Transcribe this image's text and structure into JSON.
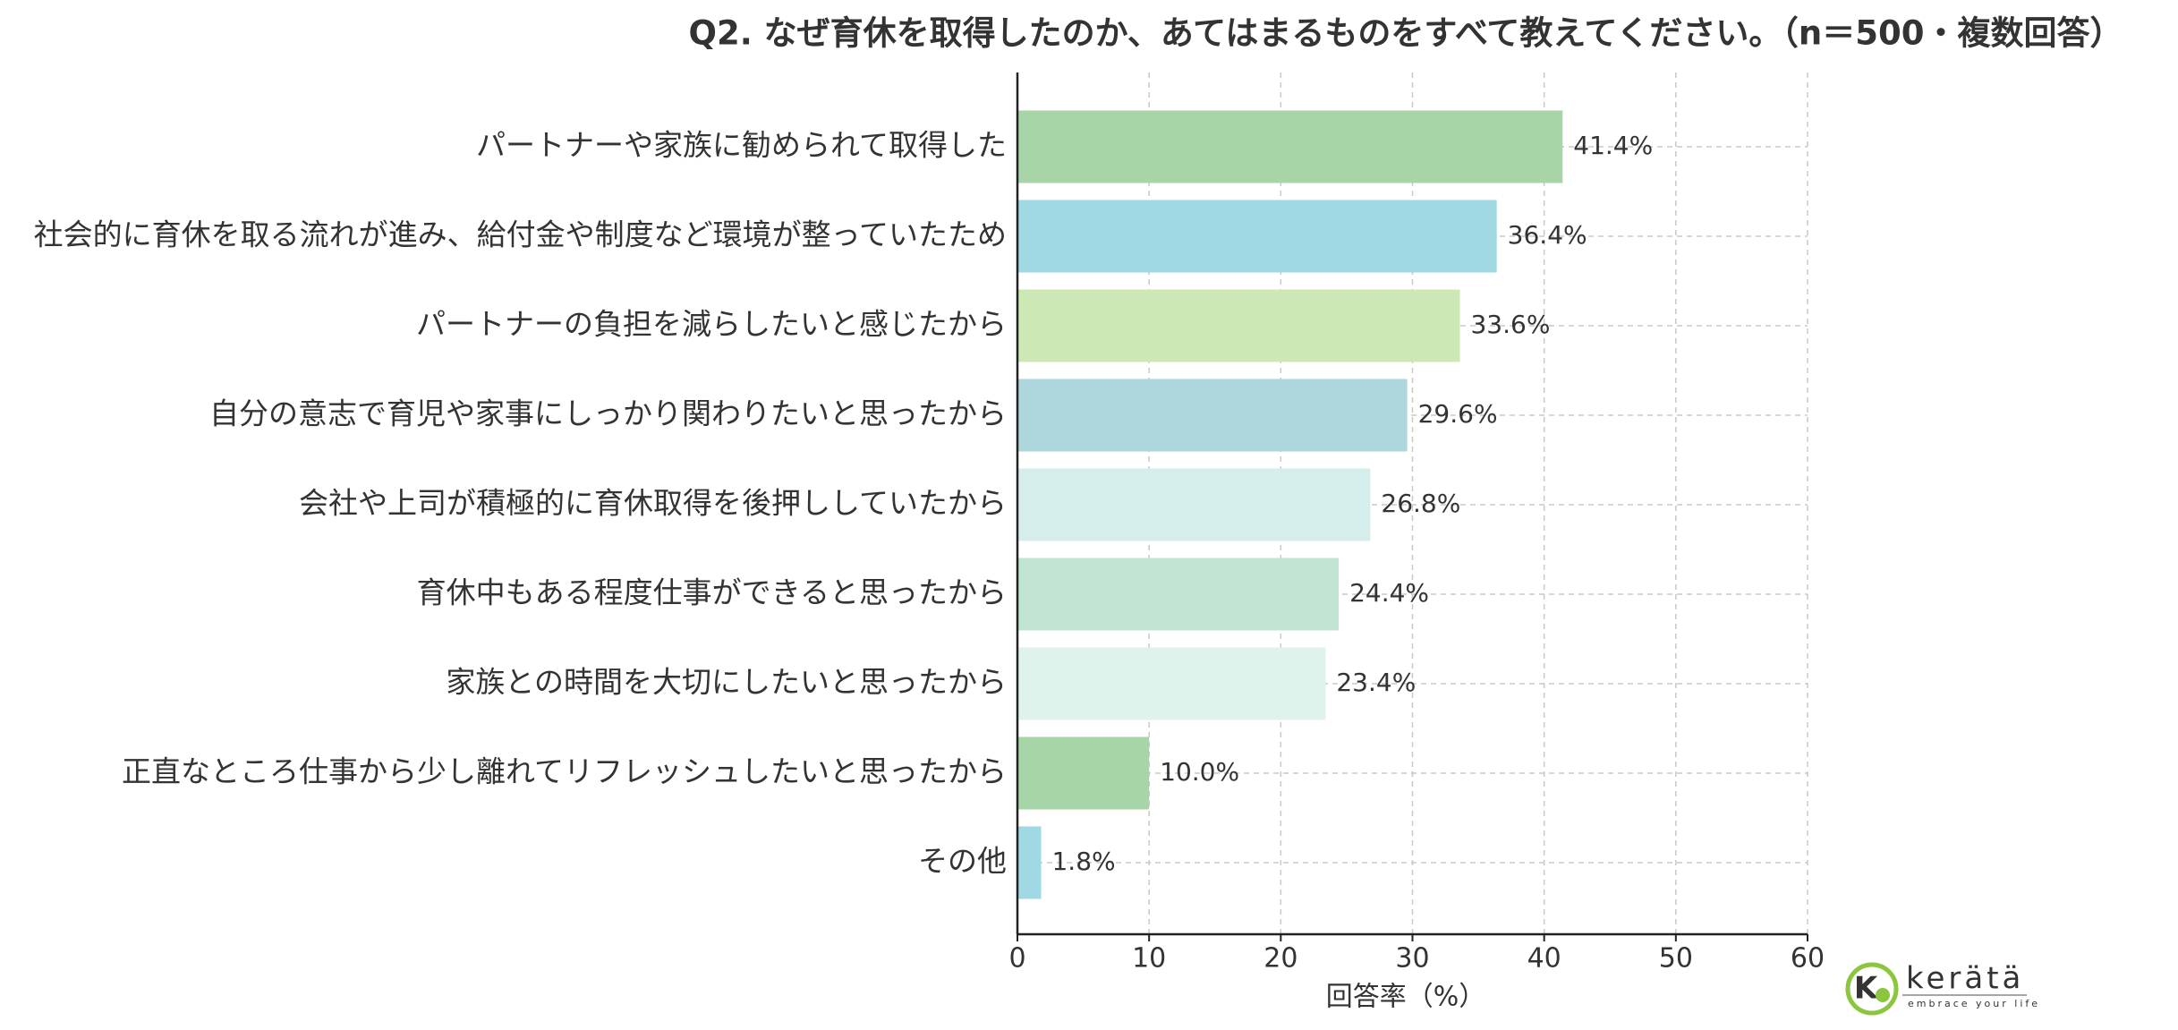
{
  "chart_data": {
    "type": "barh",
    "title": "Q2. なぜ育休を取得したのか、あてはまるものをすべて教えてください。（n＝500・複数回答）",
    "xlabel": "回答率（%）",
    "categories": [
      "パートナーや家族に勧められて取得した",
      "社会的に育休を取る流れが進み、給付金や制度など環境が整っていたため",
      "パートナーの負担を減らしたいと感じたから",
      "自分の意志で育児や家事にしっかり関わりたいと思ったから",
      "会社や上司が積極的に育休取得を後押ししていたから",
      "育休中もある程度仕事ができると思ったから",
      "家族との時間を大切にしたいと思ったから",
      "正直なところ仕事から少し離れてリフレッシュしたいと思ったから",
      "その他"
    ],
    "values": [
      41.4,
      36.4,
      33.6,
      29.6,
      26.8,
      24.4,
      23.4,
      10.0,
      1.8
    ],
    "value_labels": [
      "41.4%",
      "36.4%",
      "33.6%",
      "29.6%",
      "26.8%",
      "24.4%",
      "23.4%",
      "10.0%",
      "1.8%"
    ],
    "colors": [
      "#a8d5a8",
      "#a0d8e4",
      "#cce8b4",
      "#aed6dd",
      "#d6eeeb",
      "#c0e5d2",
      "#e0f2ec",
      "#a8d5a8",
      "#a0d8e4"
    ],
    "xlim": [
      0,
      60
    ],
    "xticks": [
      0,
      10,
      20,
      30,
      40,
      50,
      60
    ],
    "grid": true
  },
  "logo": {
    "name": "kerätä",
    "tagline": "embrace your life"
  }
}
